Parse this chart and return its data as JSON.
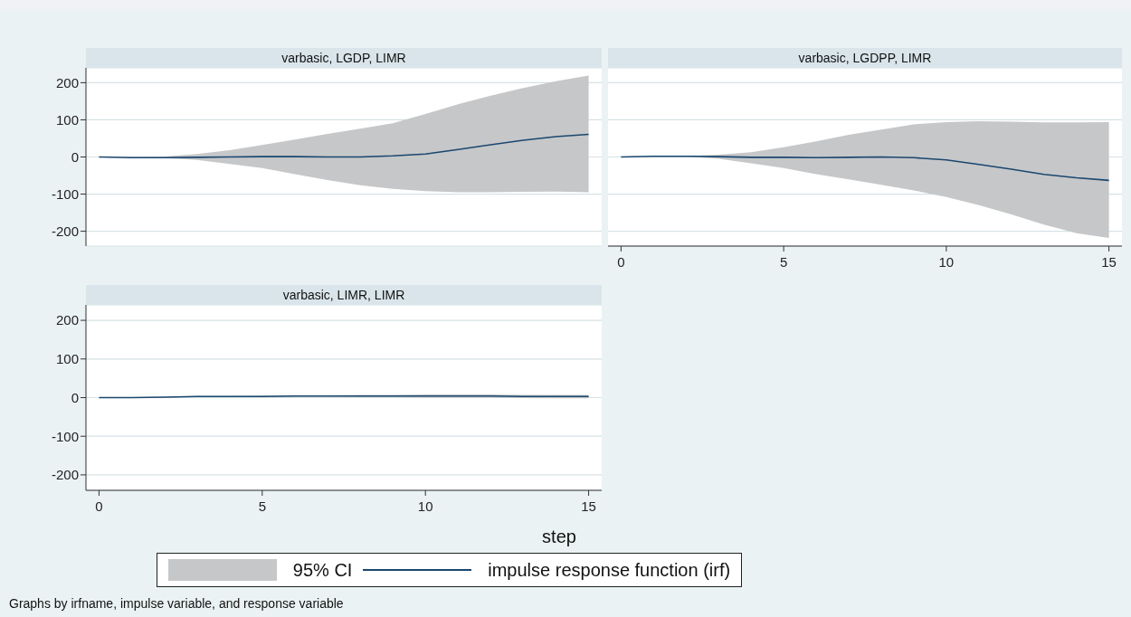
{
  "chart_data": [
    {
      "type": "line",
      "title": "varbasic, LGDP, LIMR",
      "x": [
        0,
        1,
        2,
        3,
        4,
        5,
        6,
        7,
        8,
        9,
        10,
        11,
        12,
        13,
        14,
        15
      ],
      "xlim": [
        -0.4,
        15.4
      ],
      "xticks": [
        0,
        5,
        10,
        15
      ],
      "ylim": [
        -240,
        240
      ],
      "yticks": [
        -200,
        -100,
        0,
        100,
        200
      ],
      "grid": "y",
      "tick_labels": "y",
      "series": [
        {
          "color": "#1a476f",
          "values": [
            0,
            -2,
            -2,
            -1,
            0,
            1,
            1,
            0,
            0,
            3,
            8,
            20,
            33,
            45,
            55,
            61
          ],
          "lower": [
            0,
            -1,
            -3,
            -8,
            -19,
            -30,
            -46,
            -62,
            -76,
            -86,
            -92,
            -95,
            -95,
            -94,
            -93,
            -95
          ],
          "upper": [
            0,
            0,
            1,
            8,
            18,
            32,
            47,
            62,
            76,
            91,
            116,
            142,
            165,
            186,
            204,
            219
          ]
        }
      ]
    },
    {
      "type": "line",
      "title": "varbasic, LGDPP, LIMR",
      "x": [
        0,
        1,
        2,
        3,
        4,
        5,
        6,
        7,
        8,
        9,
        10,
        11,
        12,
        13,
        14,
        15
      ],
      "xlim": [
        -0.4,
        15.4
      ],
      "xticks": [
        0,
        5,
        10,
        15
      ],
      "ylim": [
        -240,
        240
      ],
      "yticks": [
        -200,
        -100,
        0,
        100,
        200
      ],
      "grid": "y",
      "tick_labels": "x",
      "series": [
        {
          "color": "#1a476f",
          "values": [
            0,
            2,
            2,
            1,
            -1,
            -1,
            -2,
            -1,
            0,
            -2,
            -8,
            -20,
            -33,
            -47,
            -56,
            -63
          ],
          "lower": [
            0,
            1,
            1,
            -5,
            -17,
            -30,
            -46,
            -60,
            -75,
            -90,
            -108,
            -130,
            -155,
            -182,
            -205,
            -218
          ],
          "upper": [
            0,
            1,
            2,
            6,
            13,
            26,
            42,
            60,
            74,
            88,
            94,
            96,
            95,
            93,
            93,
            94
          ]
        }
      ]
    },
    {
      "type": "line",
      "title": "varbasic, LIMR, LIMR",
      "xlabel": "step",
      "x": [
        0,
        1,
        2,
        3,
        4,
        5,
        6,
        7,
        8,
        9,
        10,
        11,
        12,
        13,
        14,
        15
      ],
      "xlim": [
        -0.4,
        15.4
      ],
      "xticks": [
        0,
        5,
        10,
        15
      ],
      "ylim": [
        -240,
        240
      ],
      "yticks": [
        -200,
        -100,
        0,
        100,
        200
      ],
      "grid": "y",
      "legend": "bottom",
      "annotations": [
        "95% CI",
        "Graphs by irfname, impulse variable, and response variable"
      ],
      "series": [
        {
          "name": "impulse response function (irf)",
          "color": "#1a476f",
          "values": [
            0,
            0,
            1,
            3,
            3,
            3,
            4,
            4,
            4,
            4,
            4,
            4,
            4,
            3,
            3,
            3
          ],
          "lower": [
            0,
            -1,
            0,
            2,
            2,
            2,
            2,
            2,
            1,
            1,
            0,
            0,
            0,
            -1,
            -2,
            -2
          ],
          "upper": [
            0,
            1,
            2,
            4,
            4,
            5,
            6,
            6,
            7,
            7,
            8,
            8,
            8,
            7,
            7,
            7
          ]
        }
      ]
    }
  ]
}
